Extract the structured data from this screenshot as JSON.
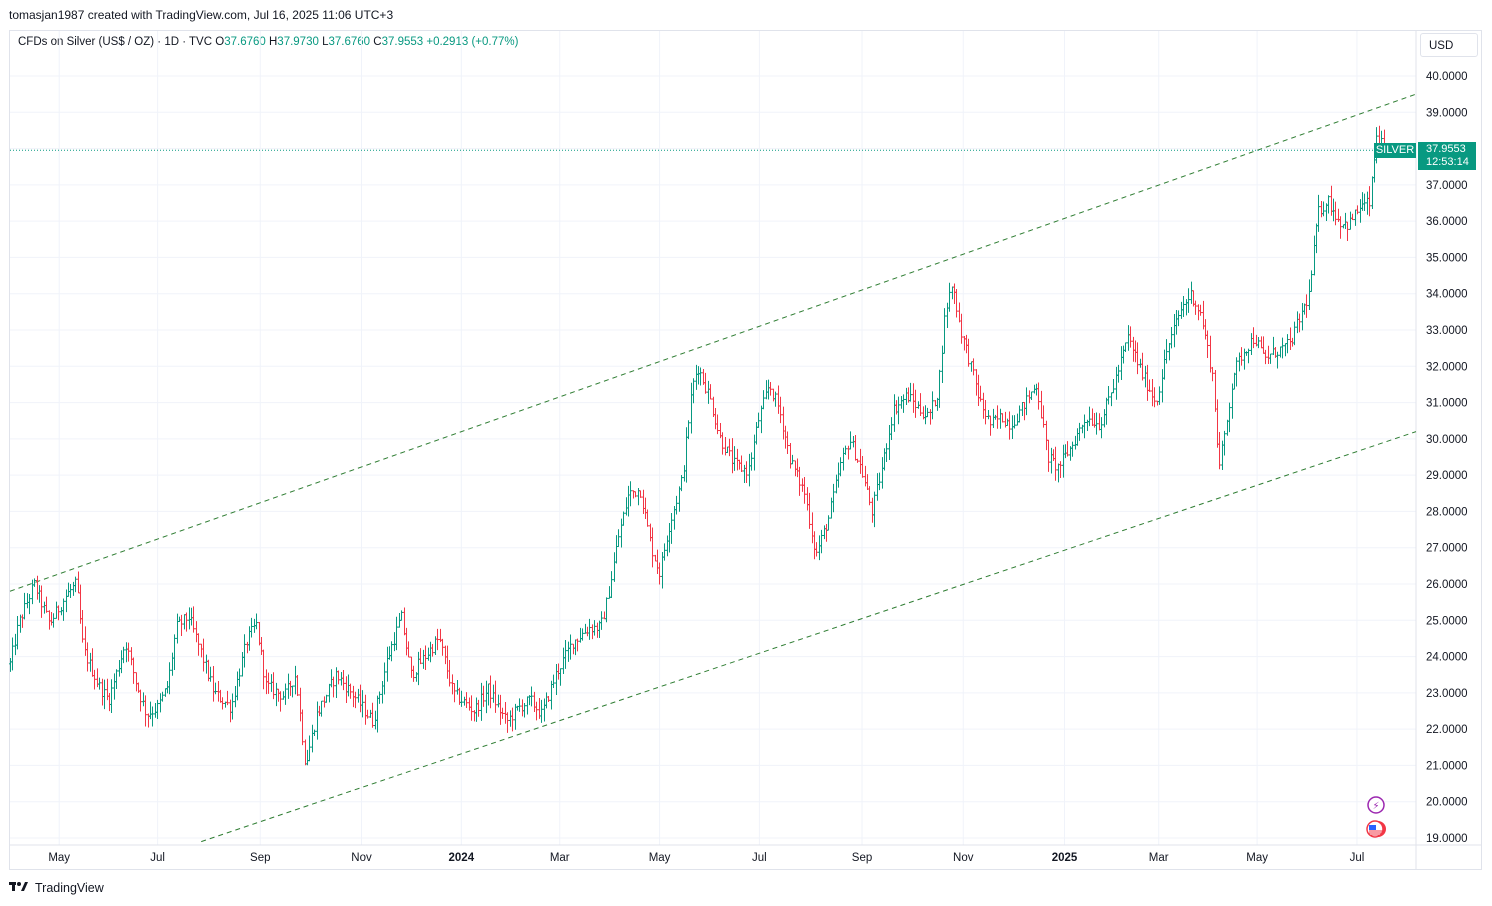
{
  "header": {
    "author_line": "tomasjan1987 created with TradingView.com, Jul 16, 2025 11:06 UTC+3"
  },
  "legend": {
    "symbol": "CFDs on Silver (US$ / OZ) · 1D · TVC",
    "o_label": "O",
    "o_value": "37.6760",
    "h_label": "H",
    "h_value": "37.9730",
    "l_label": "L",
    "l_value": "37.6760",
    "c_label": "C",
    "c_value": "37.9553",
    "change": "+0.2913 (+0.77%)"
  },
  "currency": "USD",
  "price_tag": {
    "symbol": "SILVER",
    "price": "37.9553",
    "countdown": "12:53:14"
  },
  "footer": {
    "brand": "TradingView"
  },
  "colors": {
    "up": "#089981",
    "down": "#f23645",
    "channel": "#2e7d32",
    "accent": "#089981"
  },
  "chart_data": {
    "type": "bar",
    "subtype": "ohlc",
    "grid": true,
    "ylim": [
      19,
      40
    ],
    "y_ticks": [
      "40.0000",
      "39.0000",
      "38.0000",
      "37.0000",
      "36.0000",
      "35.0000",
      "34.0000",
      "33.0000",
      "32.0000",
      "31.0000",
      "30.0000",
      "29.0000",
      "28.0000",
      "27.0000",
      "26.0000",
      "25.0000",
      "24.0000",
      "23.0000",
      "22.0000",
      "21.0000",
      "20.0000",
      "19.0000"
    ],
    "x_ticks": [
      {
        "label": "May",
        "t": 0.035
      },
      {
        "label": "Jul",
        "t": 0.105
      },
      {
        "label": "Sep",
        "t": 0.178
      },
      {
        "label": "Nov",
        "t": 0.25
      },
      {
        "label": "2024",
        "t": 0.321,
        "bold": true
      },
      {
        "label": "Mar",
        "t": 0.391
      },
      {
        "label": "May",
        "t": 0.462
      },
      {
        "label": "Jul",
        "t": 0.533
      },
      {
        "label": "Sep",
        "t": 0.606
      },
      {
        "label": "Nov",
        "t": 0.678
      },
      {
        "label": "2025",
        "t": 0.75,
        "bold": true
      },
      {
        "label": "Mar",
        "t": 0.817
      },
      {
        "label": "May",
        "t": 0.887
      },
      {
        "label": "Jul",
        "t": 0.958
      }
    ],
    "last_price": 37.9553,
    "anchors": [
      [
        0.0,
        23.8
      ],
      [
        0.006,
        24.9
      ],
      [
        0.017,
        26.0
      ],
      [
        0.028,
        24.9
      ],
      [
        0.04,
        25.7
      ],
      [
        0.047,
        26.0
      ],
      [
        0.052,
        24.2
      ],
      [
        0.063,
        23.2
      ],
      [
        0.07,
        22.8
      ],
      [
        0.082,
        24.4
      ],
      [
        0.09,
        23.2
      ],
      [
        0.097,
        22.4
      ],
      [
        0.105,
        22.6
      ],
      [
        0.112,
        23.2
      ],
      [
        0.118,
        24.8
      ],
      [
        0.127,
        25.1
      ],
      [
        0.135,
        24.2
      ],
      [
        0.145,
        23.0
      ],
      [
        0.157,
        22.6
      ],
      [
        0.168,
        24.4
      ],
      [
        0.175,
        24.9
      ],
      [
        0.182,
        23.2
      ],
      [
        0.195,
        22.9
      ],
      [
        0.203,
        23.5
      ],
      [
        0.21,
        21.0
      ],
      [
        0.218,
        22.4
      ],
      [
        0.232,
        23.5
      ],
      [
        0.245,
        22.9
      ],
      [
        0.258,
        22.2
      ],
      [
        0.268,
        23.9
      ],
      [
        0.278,
        25.1
      ],
      [
        0.285,
        23.5
      ],
      [
        0.295,
        24.0
      ],
      [
        0.305,
        24.5
      ],
      [
        0.315,
        23.0
      ],
      [
        0.33,
        22.5
      ],
      [
        0.34,
        23.1
      ],
      [
        0.353,
        22.2
      ],
      [
        0.362,
        22.6
      ],
      [
        0.37,
        22.8
      ],
      [
        0.378,
        22.4
      ],
      [
        0.388,
        23.5
      ],
      [
        0.4,
        24.4
      ],
      [
        0.412,
        24.8
      ],
      [
        0.42,
        24.8
      ],
      [
        0.425,
        25.6
      ],
      [
        0.432,
        27.2
      ],
      [
        0.44,
        28.5
      ],
      [
        0.448,
        28.6
      ],
      [
        0.456,
        27.0
      ],
      [
        0.462,
        26.3
      ],
      [
        0.468,
        27.5
      ],
      [
        0.478,
        28.9
      ],
      [
        0.485,
        31.4
      ],
      [
        0.489,
        32.0
      ],
      [
        0.497,
        31.2
      ],
      [
        0.505,
        30.0
      ],
      [
        0.515,
        29.3
      ],
      [
        0.525,
        29.1
      ],
      [
        0.532,
        30.5
      ],
      [
        0.54,
        31.5
      ],
      [
        0.547,
        30.8
      ],
      [
        0.555,
        29.4
      ],
      [
        0.565,
        28.5
      ],
      [
        0.573,
        26.8
      ],
      [
        0.582,
        27.8
      ],
      [
        0.59,
        29.2
      ],
      [
        0.597,
        30.0
      ],
      [
        0.605,
        29.2
      ],
      [
        0.613,
        28.0
      ],
      [
        0.62,
        29.2
      ],
      [
        0.628,
        30.8
      ],
      [
        0.638,
        31.2
      ],
      [
        0.647,
        30.8
      ],
      [
        0.653,
        30.6
      ],
      [
        0.66,
        31.3
      ],
      [
        0.665,
        33.5
      ],
      [
        0.67,
        34.3
      ],
      [
        0.676,
        33.0
      ],
      [
        0.682,
        32.2
      ],
      [
        0.69,
        31.0
      ],
      [
        0.697,
        30.4
      ],
      [
        0.705,
        30.6
      ],
      [
        0.712,
        30.4
      ],
      [
        0.722,
        31.0
      ],
      [
        0.73,
        31.5
      ],
      [
        0.738,
        29.5
      ],
      [
        0.745,
        29.2
      ],
      [
        0.755,
        29.8
      ],
      [
        0.765,
        30.6
      ],
      [
        0.775,
        30.4
      ],
      [
        0.785,
        31.5
      ],
      [
        0.795,
        32.8
      ],
      [
        0.805,
        31.8
      ],
      [
        0.815,
        31.0
      ],
      [
        0.823,
        32.5
      ],
      [
        0.833,
        33.6
      ],
      [
        0.84,
        34.0
      ],
      [
        0.847,
        33.4
      ],
      [
        0.855,
        31.8
      ],
      [
        0.86,
        29.2
      ],
      [
        0.865,
        30.4
      ],
      [
        0.87,
        31.8
      ],
      [
        0.877,
        32.4
      ],
      [
        0.885,
        32.8
      ],
      [
        0.892,
        32.2
      ],
      [
        0.9,
        32.4
      ],
      [
        0.91,
        32.6
      ],
      [
        0.918,
        33.4
      ],
      [
        0.924,
        34.0
      ],
      [
        0.93,
        36.2
      ],
      [
        0.937,
        36.6
      ],
      [
        0.945,
        36.0
      ],
      [
        0.952,
        35.9
      ],
      [
        0.96,
        36.4
      ],
      [
        0.967,
        36.5
      ],
      [
        0.972,
        38.4
      ],
      [
        0.977,
        37.96
      ]
    ],
    "channel": {
      "upper": [
        {
          "t": 0.0,
          "y": 25.8
        },
        {
          "t": 1.0,
          "y": 39.5
        }
      ],
      "lower": [
        {
          "t": 0.136,
          "y": 18.9
        },
        {
          "t": 1.0,
          "y": 30.2
        }
      ]
    }
  }
}
